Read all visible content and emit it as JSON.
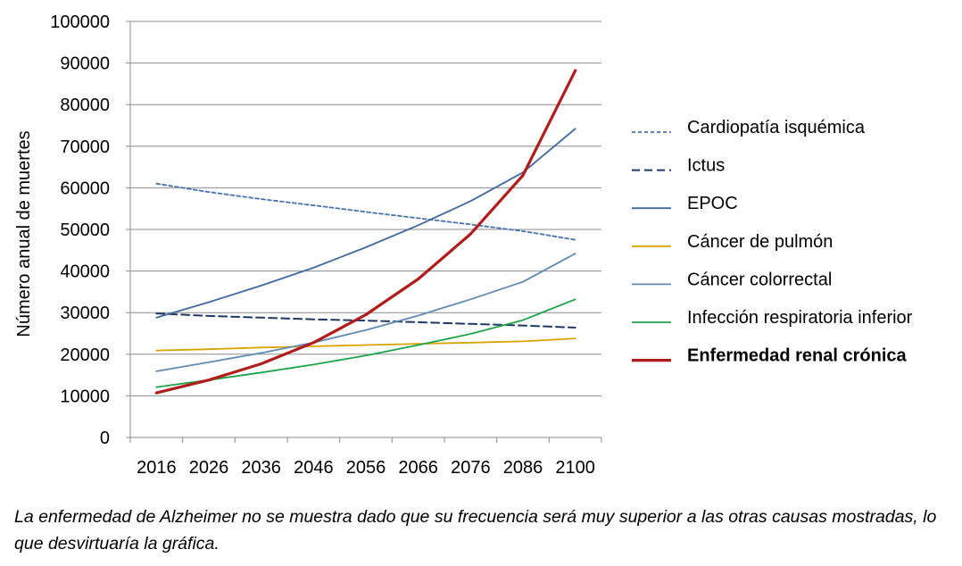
{
  "chart_data": {
    "type": "line",
    "title": "",
    "xlabel": "",
    "ylabel": "Número anual de muertes",
    "x": [
      "2016",
      "2026",
      "2036",
      "2046",
      "2056",
      "2066",
      "2076",
      "2086",
      "2100"
    ],
    "ylim": [
      0,
      100000
    ],
    "yticks": [
      "0",
      "10000",
      "20000",
      "30000",
      "40000",
      "50000",
      "60000",
      "70000",
      "80000",
      "90000",
      "100000"
    ],
    "grid": true,
    "legend_position": "right",
    "series": [
      {
        "name": "Cardiopatía isquémica",
        "color": "#4a72b0",
        "dash": "dotted",
        "values": [
          61000,
          59000,
          57300,
          55800,
          54200,
          52700,
          51200,
          49600,
          47500
        ]
      },
      {
        "name": "Ictus",
        "color": "#1f3864",
        "dash": "dashed",
        "values": [
          29800,
          29200,
          28800,
          28400,
          28100,
          27700,
          27300,
          26900,
          26400
        ]
      },
      {
        "name": "EPOC",
        "color": "#41689e",
        "dash": "solid",
        "values": [
          28800,
          32500,
          36500,
          40800,
          45700,
          51000,
          56800,
          63700,
          74200
        ]
      },
      {
        "name": "Cáncer de pulmón",
        "color": "#d9a400",
        "dash": "solid",
        "values": [
          20900,
          21200,
          21600,
          21900,
          22200,
          22500,
          22800,
          23100,
          23800
        ]
      },
      {
        "name": "Cáncer colorrectal",
        "color": "#5f8bb5",
        "dash": "solid",
        "values": [
          15900,
          18100,
          20300,
          22800,
          25800,
          29300,
          33200,
          37400,
          44200
        ]
      },
      {
        "name": "Infección respiratoria inferior",
        "color": "#1ea34a",
        "dash": "solid",
        "values": [
          12100,
          13800,
          15600,
          17500,
          19700,
          22200,
          24900,
          28200,
          33200
        ]
      },
      {
        "name": "Enfermedad renal crónica",
        "color": "#b01c1c",
        "dash": "solid",
        "emphasis": true,
        "values": [
          10700,
          13800,
          17700,
          22800,
          29500,
          38100,
          48900,
          63000,
          88200
        ]
      }
    ]
  },
  "caption": "La enfermedad de Alzheimer no se muestra dado que su frecuencia será muy superior a las otras causas mostradas, lo que desvirtuaría la gráfica."
}
